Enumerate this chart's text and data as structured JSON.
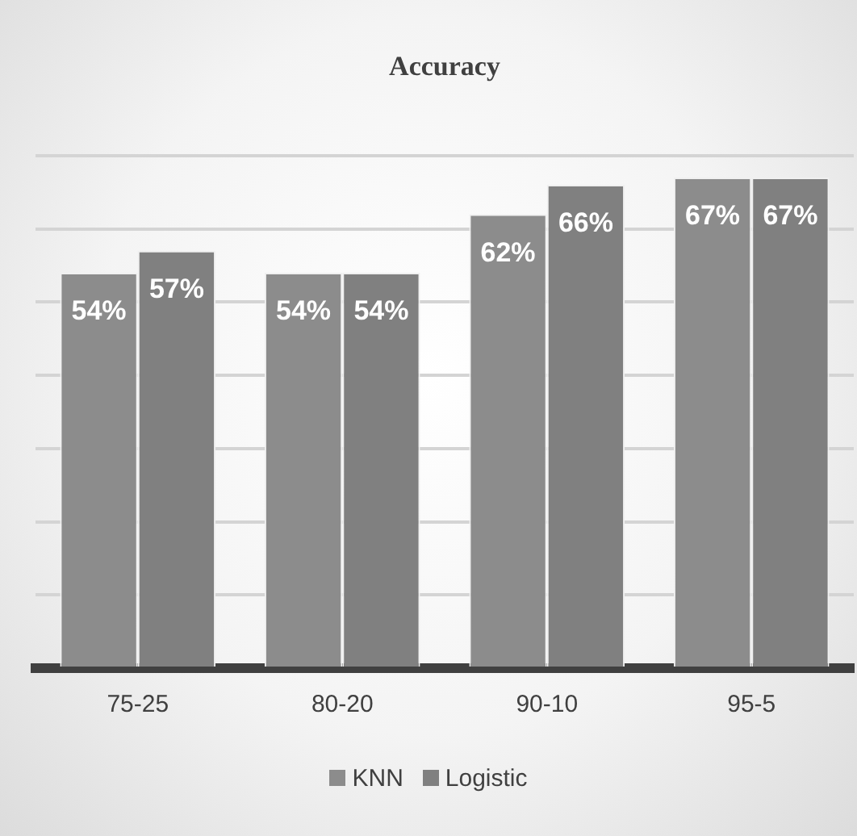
{
  "chart_data": {
    "type": "bar",
    "title": "Accuracy",
    "categories": [
      "75-25",
      "80-20",
      "90-10",
      "95-5"
    ],
    "series": [
      {
        "name": "KNN",
        "color": "#8c8c8c",
        "values": [
          54,
          54,
          62,
          67
        ],
        "value_labels": [
          "54%",
          "54%",
          "62%",
          "67%"
        ]
      },
      {
        "name": "Logistic",
        "color": "#808080",
        "values": [
          57,
          54,
          66,
          67
        ],
        "value_labels": [
          "57%",
          "54%",
          "66%",
          "67%"
        ]
      }
    ],
    "grid": "y",
    "legend": "bottom",
    "tick_labels": "x"
  }
}
